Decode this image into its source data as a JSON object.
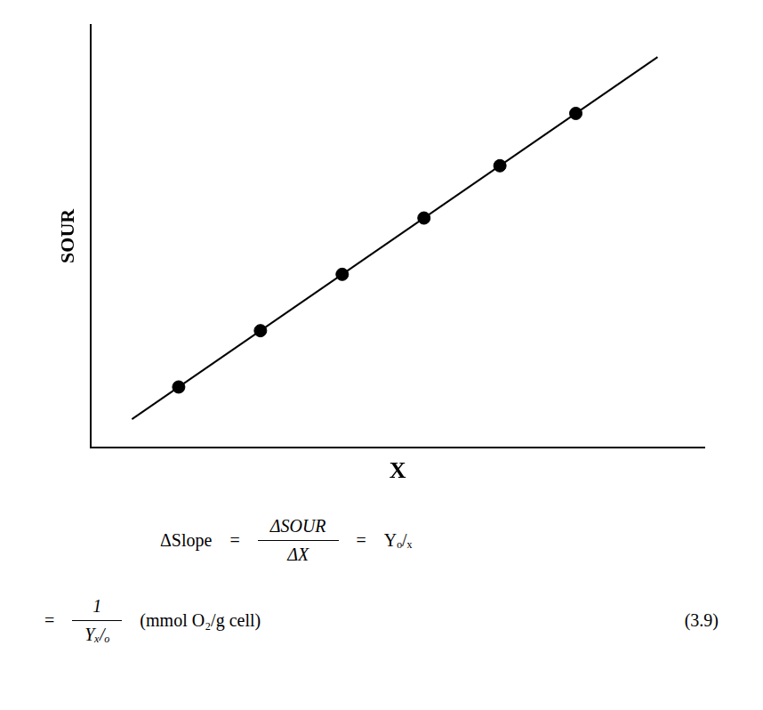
{
  "chart_data": {
    "type": "scatter",
    "xlabel": "X",
    "ylabel": "SOUR",
    "series": [
      {
        "type": "line",
        "color": "#000000",
        "line_style": "solid",
        "x": [
          0.02,
          0.92
        ],
        "values": [
          0.02,
          0.92
        ]
      },
      {
        "type": "scatter",
        "color": "#000000",
        "marker": "circle",
        "x": [
          0.1,
          0.24,
          0.38,
          0.52,
          0.65,
          0.78
        ],
        "values": [
          0.1,
          0.24,
          0.38,
          0.52,
          0.65,
          0.78
        ]
      }
    ],
    "xlim": [
      -0.05,
      1.0
    ],
    "ylim": [
      -0.05,
      1.0
    ],
    "grid": false,
    "tick_labels": false,
    "annotations": [
      "ΔSlope",
      "=",
      "ΔSOUR",
      "ΔX",
      "=",
      "Yₒ/ₓ",
      "=",
      "1",
      "Yₓ/ₒ",
      "(mmol O₂/g cell)",
      "(3.9)"
    ]
  }
}
